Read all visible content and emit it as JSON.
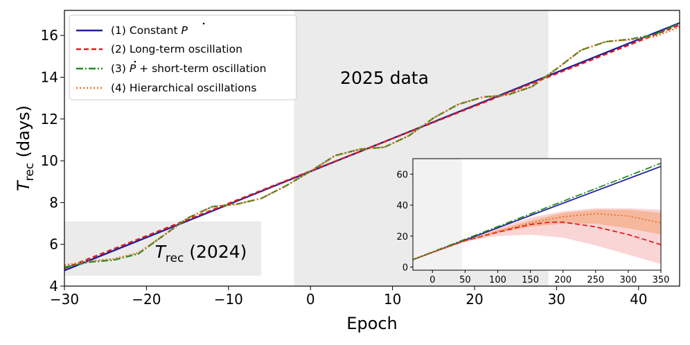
{
  "chart_data": [
    {
      "type": "line",
      "xlabel_main": "Epoch",
      "ylabel_main": "T",
      "ylabel_sub": "rec",
      "ylabel_tail": " (days)",
      "xlim": [
        -30,
        45
      ],
      "ylim": [
        4,
        17.2
      ],
      "xticks": [
        -30,
        -20,
        -10,
        0,
        10,
        20,
        30,
        40
      ],
      "xtick_labels": [
        "−30",
        "−20",
        "−10",
        "0",
        "10",
        "20",
        "30",
        "40"
      ],
      "yticks": [
        4,
        6,
        8,
        10,
        12,
        14,
        16
      ],
      "ytick_labels": [
        "4",
        "6",
        "8",
        "10",
        "12",
        "14",
        "16"
      ],
      "grid": false,
      "legend_position": "top-left",
      "regions": [
        {
          "x": [
            -30,
            -6
          ],
          "y": [
            4.5,
            7.1
          ],
          "label_main": "T",
          "label_sub": "rec",
          "label_tail": " (2024)",
          "color": "#ebebeb"
        },
        {
          "x": [
            -2,
            29
          ],
          "y": [
            4,
            17.2
          ],
          "label": "2025 data",
          "color": "#ebebeb"
        }
      ],
      "series": [
        {
          "name_prefix": "(1) Constant ",
          "name_symbol": "P",
          "color": "#1f1f99",
          "dash": "solid",
          "x": [
            -30,
            45
          ],
          "y": [
            4.75,
            16.6
          ]
        },
        {
          "name": "(2) Long-term oscillation",
          "color": "#e41a1c",
          "dash": "dashed",
          "x": [
            -30,
            45
          ],
          "y": [
            4.85,
            16.5
          ]
        },
        {
          "name_prefix": "(3) ",
          "name_symbol": "P",
          "name_suffix": " + short-term oscillation",
          "color": "#228b22",
          "dash": "dashdot",
          "x": [
            -30,
            -27,
            -24,
            -21,
            -18,
            -15,
            -12,
            -9,
            -6,
            -3,
            0,
            3,
            6,
            9,
            12,
            15,
            18,
            21,
            24,
            27,
            30,
            33,
            36,
            39,
            42,
            45
          ],
          "y": [
            4.9,
            5.15,
            5.25,
            5.55,
            6.4,
            7.25,
            7.8,
            7.92,
            8.2,
            8.8,
            9.5,
            10.25,
            10.55,
            10.65,
            11.2,
            12.05,
            12.7,
            13.05,
            13.15,
            13.55,
            14.4,
            15.3,
            15.7,
            15.82,
            16.05,
            16.6
          ]
        },
        {
          "name": "(4) Hierarchical oscillations",
          "color": "#e87020",
          "dash": "dotted",
          "x": [
            -30,
            -27,
            -24,
            -21,
            -18,
            -15,
            -12,
            -9,
            -6,
            -3,
            0,
            3,
            6,
            9,
            12,
            15,
            18,
            21,
            24,
            27,
            30,
            33,
            36,
            39,
            42,
            45
          ],
          "y": [
            5.0,
            5.2,
            5.3,
            5.6,
            6.4,
            7.25,
            7.8,
            7.92,
            8.2,
            8.8,
            9.5,
            10.25,
            10.55,
            10.65,
            11.2,
            12.05,
            12.7,
            13.05,
            13.15,
            13.55,
            14.4,
            15.3,
            15.7,
            15.8,
            15.95,
            16.4
          ]
        }
      ]
    },
    {
      "type": "line",
      "name": "inset",
      "xlim": [
        -30,
        350
      ],
      "ylim": [
        -2,
        70
      ],
      "xticks": [
        0,
        50,
        100,
        150,
        200,
        250,
        300,
        350
      ],
      "xtick_labels": [
        "0",
        "50",
        "100",
        "150",
        "200",
        "250",
        "300",
        "350"
      ],
      "yticks": [
        0,
        20,
        40,
        60
      ],
      "ytick_labels": [
        "0",
        "20",
        "40",
        "60"
      ],
      "shaded_region": {
        "x": [
          -30,
          45
        ],
        "color": "#f2f2f2"
      },
      "bands": [
        {
          "series": "(2) Long-term oscillation",
          "color": "#f5b3b3",
          "x": [
            -30,
            50,
            100,
            150,
            200,
            250,
            300,
            350
          ],
          "lower": [
            4.5,
            16.5,
            20,
            21,
            19,
            14,
            8,
            2
          ],
          "upper": [
            4.9,
            17.5,
            25,
            32,
            36,
            38,
            38,
            37
          ]
        },
        {
          "series": "(4) Hierarchical oscillations",
          "color": "#f0a070",
          "x": [
            -30,
            50,
            100,
            150,
            200,
            250,
            300,
            350
          ],
          "lower": [
            4.6,
            16.8,
            22,
            26,
            28,
            28,
            25,
            21
          ],
          "upper": [
            4.9,
            17.3,
            24,
            30,
            35,
            37,
            37,
            35
          ]
        }
      ],
      "series": [
        {
          "name": "(1) Constant P",
          "color": "#1f1f99",
          "dash": "solid",
          "x": [
            -30,
            350
          ],
          "y": [
            4.75,
            65
          ]
        },
        {
          "name": "(2) Long-term oscillation",
          "color": "#e41a1c",
          "dash": "dashed",
          "x": [
            -30,
            0,
            50,
            100,
            150,
            180,
            200,
            250,
            300,
            350
          ],
          "y": [
            4.85,
            9.5,
            16.9,
            22.5,
            27.5,
            29,
            29,
            26,
            21,
            14.5
          ]
        },
        {
          "name": "(3) P + short-term oscillation",
          "color": "#228b22",
          "dash": "dashdot",
          "x": [
            -30,
            350
          ],
          "y": [
            4.9,
            67
          ]
        },
        {
          "name": "(4) Hierarchical oscillations",
          "color": "#e87020",
          "dash": "dotted",
          "x": [
            -30,
            0,
            50,
            100,
            150,
            200,
            250,
            300,
            350
          ],
          "y": [
            5.0,
            9.6,
            17,
            23,
            28.5,
            32.5,
            34.5,
            33,
            28.5
          ]
        }
      ]
    }
  ]
}
